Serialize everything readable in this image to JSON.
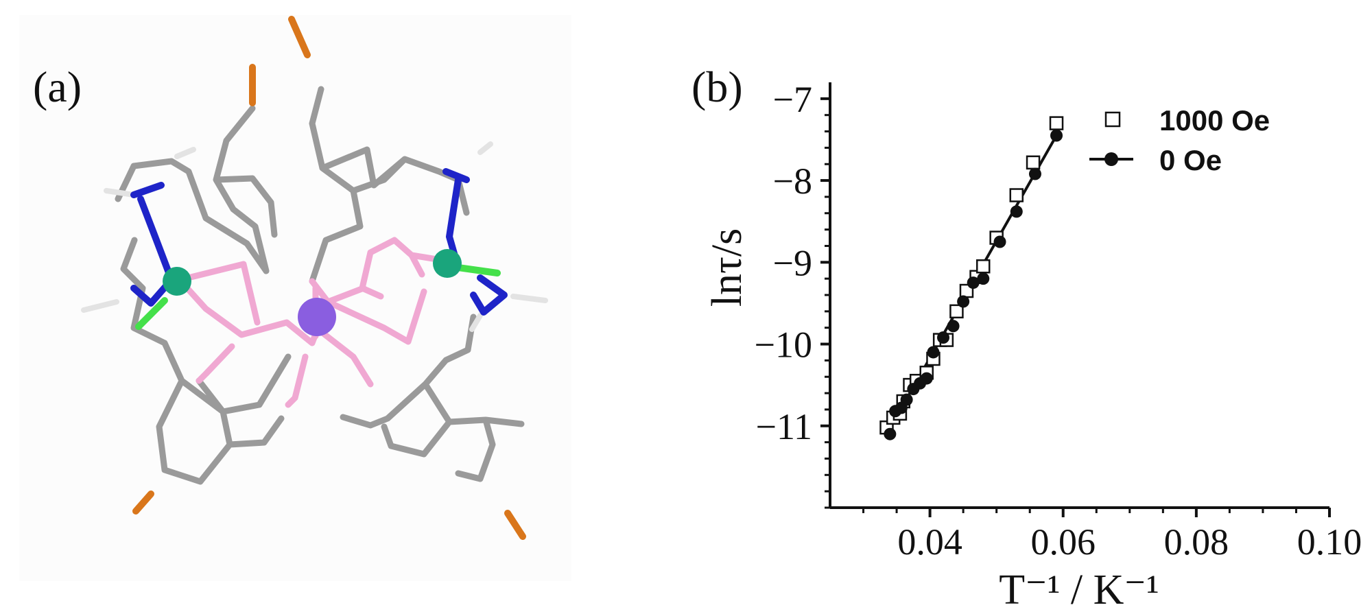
{
  "panels": {
    "a": {
      "label": "(a)"
    },
    "b": {
      "label": "(b)"
    }
  },
  "molecule": {
    "colors": {
      "carbon": "#9a9a9a",
      "hydrogen": "#e3e3e3",
      "nitrogen": "#1e24c8",
      "oxygen": "#f0a8d2",
      "bromine": "#d9761b",
      "chlorine": "#44e04a",
      "central_metal": "#8a5ee0",
      "side_metal": "#1aa57c"
    }
  },
  "chart_data": {
    "type": "scatter",
    "title": "",
    "xlabel": "T⁻¹ / K⁻¹",
    "ylabel": "lnτ/s",
    "xlim": [
      0.025,
      0.1
    ],
    "ylim": [
      -12,
      -7
    ],
    "xticks": [
      0.04,
      0.06,
      0.08,
      0.1
    ],
    "xtick_labels": [
      "0.04",
      "0.06",
      "0.08",
      "0.10"
    ],
    "yticks": [
      -11,
      -10,
      -9,
      -8,
      -7
    ],
    "ytick_labels": [
      "−11",
      "−10",
      "−9",
      "−8",
      "−7"
    ],
    "grid": false,
    "legend_position": "top-right",
    "series": [
      {
        "name": "1000 Oe",
        "marker": "open-square",
        "color": "#111111",
        "x": [
          0.0335,
          0.0345,
          0.0355,
          0.036,
          0.037,
          0.038,
          0.0395,
          0.0405,
          0.0415,
          0.0425,
          0.044,
          0.0455,
          0.047,
          0.048,
          0.05,
          0.053,
          0.0555,
          0.059
        ],
        "y": [
          -11.02,
          -10.9,
          -10.85,
          -10.7,
          -10.5,
          -10.45,
          -10.35,
          -10.18,
          -9.95,
          -9.95,
          -9.6,
          -9.35,
          -9.18,
          -9.05,
          -8.7,
          -8.18,
          -7.78,
          -7.3
        ]
      },
      {
        "name": "0 Oe",
        "marker": "filled-circle",
        "color": "#111111",
        "fit_line": {
          "x": [
            0.0335,
            0.059
          ],
          "y": [
            -11.1,
            -7.45
          ]
        },
        "x": [
          0.034,
          0.0348,
          0.0357,
          0.0365,
          0.0375,
          0.0385,
          0.0395,
          0.0405,
          0.042,
          0.0435,
          0.045,
          0.0465,
          0.048,
          0.0505,
          0.053,
          0.0558,
          0.059
        ],
        "y": [
          -11.1,
          -10.82,
          -10.78,
          -10.68,
          -10.55,
          -10.48,
          -10.42,
          -10.1,
          -9.92,
          -9.78,
          -9.48,
          -9.25,
          -9.2,
          -8.75,
          -8.38,
          -7.92,
          -7.45
        ]
      }
    ]
  }
}
